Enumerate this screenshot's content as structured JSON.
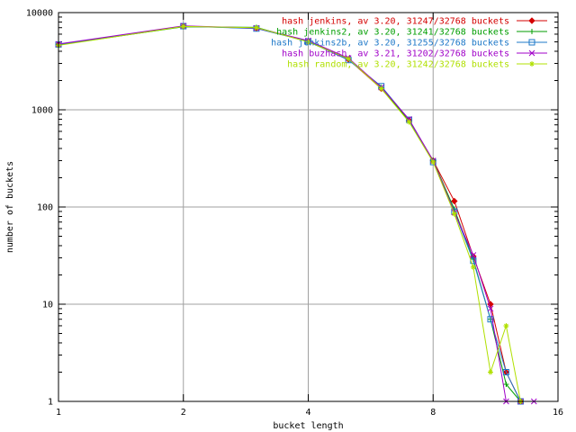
{
  "chart_data": {
    "type": "line",
    "title": "",
    "xlabel": "bucket length",
    "ylabel": "number of buckets",
    "x_scale": "log2",
    "y_scale": "log10",
    "xlim": [
      1,
      16
    ],
    "ylim": [
      1,
      10000
    ],
    "grid": true,
    "legend_position": "top-right",
    "x_ticks": [
      {
        "value": 1,
        "label": "1"
      },
      {
        "value": 2,
        "label": "2"
      },
      {
        "value": 4,
        "label": "4"
      },
      {
        "value": 8,
        "label": "8"
      },
      {
        "value": 16,
        "label": "16"
      }
    ],
    "y_ticks": [
      {
        "value": 1,
        "label": "1"
      },
      {
        "value": 10,
        "label": "10"
      },
      {
        "value": 100,
        "label": "100"
      },
      {
        "value": 1000,
        "label": "1000"
      },
      {
        "value": 10000,
        "label": "10000"
      }
    ],
    "series": [
      {
        "name": "hash jenkins, av 3.20, 31247/32768 buckets",
        "color": "#d40000",
        "marker": "diamond",
        "points": [
          [
            1,
            4700
          ],
          [
            2,
            7250
          ],
          [
            3,
            6900
          ],
          [
            4,
            5100
          ],
          [
            5,
            3300
          ],
          [
            6,
            1650
          ],
          [
            7,
            780
          ],
          [
            8,
            300
          ],
          [
            9,
            115
          ],
          [
            10,
            31
          ],
          [
            11,
            10
          ],
          [
            12,
            2
          ],
          [
            13,
            1
          ]
        ]
      },
      {
        "name": "hash jenkins2, av 3.20, 31241/32768 buckets",
        "color": "#009e00",
        "marker": "plus",
        "points": [
          [
            1,
            4650
          ],
          [
            2,
            7150
          ],
          [
            3,
            7050
          ],
          [
            4,
            5000
          ],
          [
            5,
            3350
          ],
          [
            6,
            1700
          ],
          [
            7,
            760
          ],
          [
            8,
            300
          ],
          [
            9,
            95
          ],
          [
            10,
            29
          ],
          [
            11,
            7
          ],
          [
            12,
            1.5
          ],
          [
            13,
            1
          ]
        ]
      },
      {
        "name": "hash jenkins2b, av 3.20, 31255/32768 buckets",
        "color": "#1e78c8",
        "marker": "square",
        "points": [
          [
            1,
            4700
          ],
          [
            2,
            7250
          ],
          [
            3,
            6850
          ],
          [
            4,
            5050
          ],
          [
            5,
            3250
          ],
          [
            6,
            1750
          ],
          [
            7,
            790
          ],
          [
            8,
            290
          ],
          [
            9,
            90
          ],
          [
            10,
            28
          ],
          [
            11,
            7
          ],
          [
            12,
            2
          ],
          [
            13,
            1
          ]
        ]
      },
      {
        "name": "hash buzhash, av 3.21, 31202/32768 buckets",
        "color": "#a000c8",
        "marker": "x",
        "points": [
          [
            1,
            4750
          ],
          [
            2,
            7300
          ],
          [
            3,
            6950
          ],
          [
            4,
            5150
          ],
          [
            5,
            3400
          ],
          [
            6,
            1700
          ],
          [
            7,
            800
          ],
          [
            8,
            300
          ],
          [
            9,
            88
          ],
          [
            10,
            32
          ],
          [
            11,
            9
          ],
          [
            12,
            1
          ],
          [
            13,
            1
          ],
          [
            14,
            1
          ]
        ]
      },
      {
        "name": "hash random, av 3.20, 31242/32768 buckets",
        "color": "#b0e000",
        "marker": "star",
        "points": [
          [
            1,
            4600
          ],
          [
            2,
            7200
          ],
          [
            3,
            7000
          ],
          [
            4,
            5000
          ],
          [
            5,
            3350
          ],
          [
            6,
            1650
          ],
          [
            7,
            750
          ],
          [
            8,
            290
          ],
          [
            9,
            85
          ],
          [
            10,
            24
          ],
          [
            11,
            2
          ],
          [
            12,
            6
          ],
          [
            13,
            1
          ]
        ]
      }
    ]
  }
}
